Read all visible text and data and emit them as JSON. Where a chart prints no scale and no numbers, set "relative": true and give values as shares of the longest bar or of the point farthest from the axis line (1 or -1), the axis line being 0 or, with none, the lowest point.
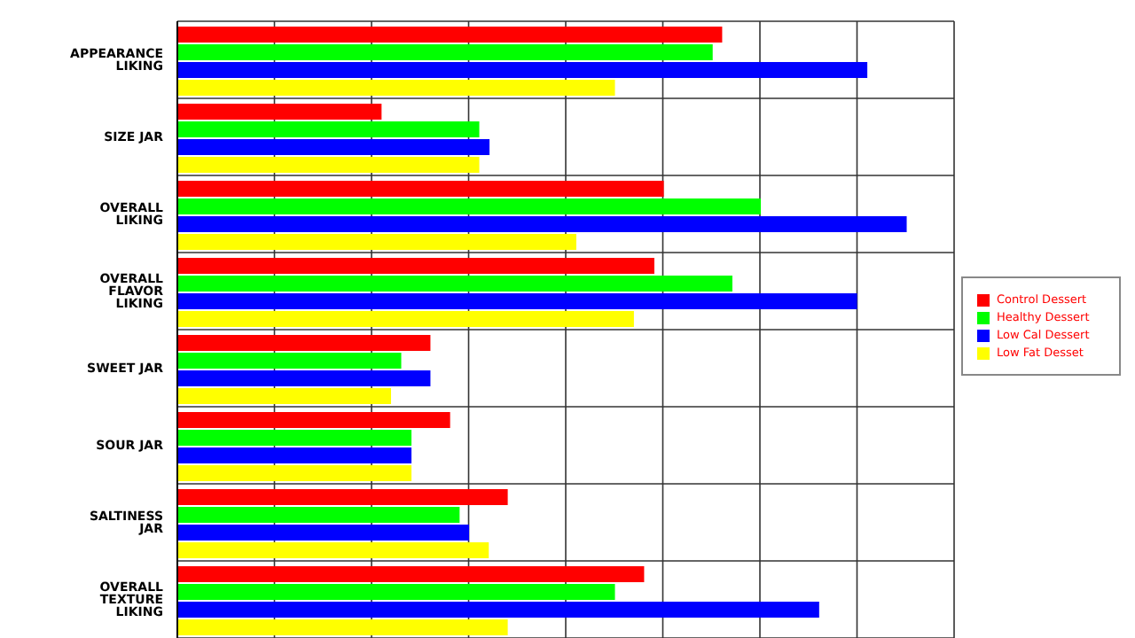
{
  "chart_data": {
    "type": "bar",
    "orientation": "horizontal",
    "relative": true,
    "grid": true,
    "legend": "right",
    "categories": [
      "APPEARANCE LIKING",
      "SIZE JAR",
      "OVERALL LIKING",
      "OVERALL FLAVOR LIKING",
      "SWEET JAR",
      "SOUR JAR",
      "SALTINESS JAR",
      "OVERALL TEXTURE LIKING"
    ],
    "series": [
      {
        "name": "Control Dessert",
        "color": "#ff0000",
        "values": [
          0.747,
          0.28,
          0.667,
          0.654,
          0.347,
          0.374,
          0.453,
          0.64
        ]
      },
      {
        "name": "Healthy Dessert",
        "color": "#00ff00",
        "values": [
          0.734,
          0.414,
          0.8,
          0.761,
          0.307,
          0.321,
          0.387,
          0.6
        ]
      },
      {
        "name": "Low Cal Dessert",
        "color": "#0000ff",
        "values": [
          0.946,
          0.428,
          1,
          0.932,
          0.347,
          0.321,
          0.4,
          0.88
        ]
      },
      {
        "name": "Low Fat Desset",
        "color": "#ffff00",
        "values": [
          0.6,
          0.414,
          0.547,
          0.626,
          0.293,
          0.321,
          0.427,
          0.453
        ]
      }
    ]
  }
}
